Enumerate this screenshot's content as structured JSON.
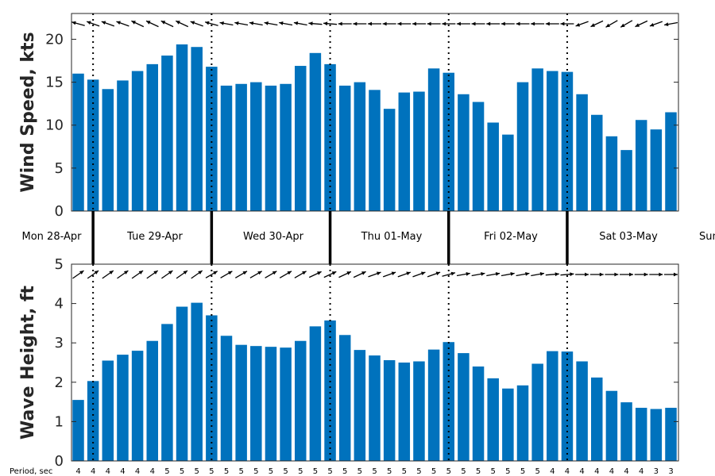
{
  "chart_data": [
    {
      "type": "bar",
      "ylabel": "Wind Speed, kts",
      "ylim": [
        0,
        23
      ],
      "yticks": [
        0,
        5,
        10,
        15,
        20
      ],
      "color": "#0072BD",
      "values": [
        16.0,
        15.3,
        14.2,
        15.2,
        16.3,
        17.1,
        18.1,
        19.4,
        19.1,
        16.8,
        14.6,
        14.8,
        15.0,
        14.6,
        14.8,
        16.9,
        18.4,
        17.1,
        14.6,
        15.0,
        14.1,
        11.9,
        13.8,
        13.9,
        16.6,
        16.1,
        13.6,
        12.7,
        10.3,
        8.9,
        15.0,
        16.6,
        16.3,
        16.2,
        13.6,
        11.2,
        8.7,
        7.1,
        10.6,
        9.5,
        11.5
      ],
      "direction_arrows": "wind direction arrows drawn above each bar"
    },
    {
      "type": "bar",
      "ylabel": "Wave Height, ft",
      "ylim": [
        0,
        5
      ],
      "yticks": [
        0,
        1,
        2,
        3,
        4,
        5
      ],
      "color": "#0072BD",
      "values": [
        1.55,
        2.03,
        2.55,
        2.7,
        2.8,
        3.05,
        3.48,
        3.92,
        4.02,
        3.7,
        3.18,
        2.95,
        2.92,
        2.9,
        2.88,
        3.05,
        3.42,
        3.57,
        3.2,
        2.82,
        2.68,
        2.56,
        2.5,
        2.53,
        2.83,
        3.02,
        2.74,
        2.4,
        2.1,
        1.84,
        1.92,
        2.47,
        2.79,
        2.78,
        2.53,
        2.12,
        1.78,
        1.49,
        1.35,
        1.32,
        1.35
      ],
      "direction_arrows": "wave direction arrows drawn above each bar"
    }
  ],
  "days": [
    "Mon 28-Apr",
    "Tue 29-Apr",
    "Wed 30-Apr",
    "Thu 01-May",
    "Fri 02-May",
    "Sat 03-May",
    "Sun"
  ],
  "period": {
    "label": "Period, sec",
    "values": [
      4,
      4,
      4,
      4,
      4,
      4,
      5,
      5,
      5,
      5,
      5,
      5,
      5,
      5,
      5,
      5,
      5,
      5,
      5,
      5,
      5,
      5,
      5,
      5,
      5,
      5,
      5,
      5,
      5,
      5,
      5,
      5,
      4,
      4,
      4,
      4,
      4,
      4,
      4,
      3,
      3
    ]
  },
  "wind_angles_deg": [
    195,
    200,
    200,
    200,
    205,
    205,
    205,
    205,
    200,
    195,
    190,
    190,
    190,
    190,
    190,
    190,
    185,
    185,
    180,
    180,
    180,
    180,
    180,
    180,
    180,
    180,
    180,
    180,
    180,
    180,
    180,
    180,
    180,
    180,
    160,
    155,
    150,
    150,
    155,
    160,
    170
  ],
  "wave_angles_deg": [
    -35,
    -35,
    -35,
    -35,
    -35,
    -35,
    -35,
    -35,
    -35,
    -30,
    -30,
    -30,
    -30,
    -30,
    -30,
    -30,
    -25,
    -25,
    -25,
    -25,
    -20,
    -20,
    -20,
    -20,
    -20,
    -15,
    -10,
    -10,
    -10,
    -10,
    -10,
    -10,
    -5,
    -5,
    0,
    0,
    0,
    0,
    0,
    0,
    0
  ]
}
